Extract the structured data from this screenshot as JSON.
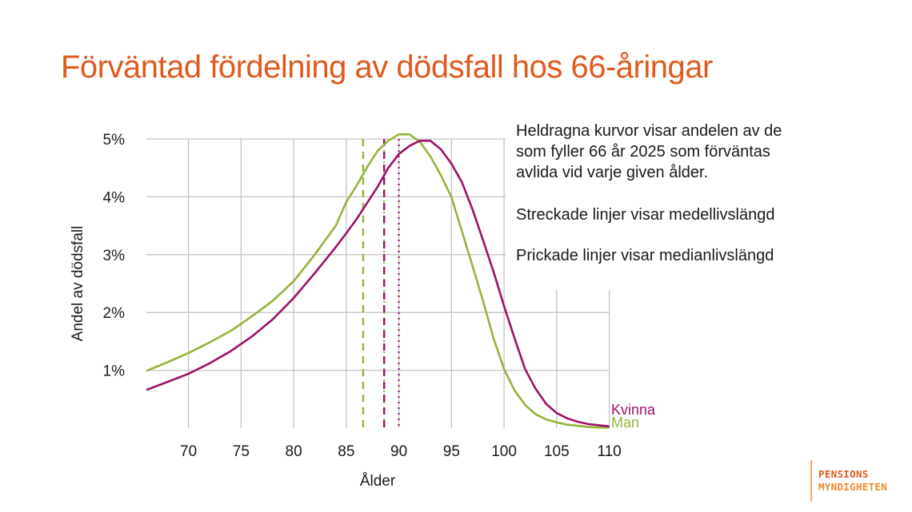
{
  "title": "Förväntad fördelning av dödsfall hos 66-åringar",
  "notes": {
    "solid": "Heldragna kurvor visar andelen av de som fyller 66 år 2025 som förväntas avlida vid varje given ålder.",
    "dashed": "Streckade linjer visar medellivslängd",
    "dotted": "Prickade linjer visar medianlivslängd"
  },
  "logo": {
    "line1": "PENSIONS",
    "line2": "MYNDIGHETEN"
  },
  "colors": {
    "title": "#e05a1e",
    "kvinna": "#9c1068",
    "man": "#94b53a",
    "grid": "#c8c2c4",
    "text": "#1a1a1a"
  },
  "chart_data": {
    "type": "line",
    "title": "Förväntad fördelning av dödsfall hos 66-åringar",
    "xlabel": "Ålder",
    "ylabel": "Andel av dödsfall",
    "xlim": [
      66,
      110
    ],
    "ylim": [
      0,
      5.0
    ],
    "xticks": [
      70,
      75,
      80,
      85,
      90,
      95,
      100,
      105,
      110
    ],
    "yticks": [
      1,
      2,
      3,
      4,
      5
    ],
    "ytick_labels": [
      "1%",
      "2%",
      "3%",
      "4%",
      "5%"
    ],
    "grid": true,
    "legend": "inline labels at line ends",
    "x": [
      66,
      68,
      70,
      72,
      74,
      76,
      78,
      80,
      82,
      84,
      85,
      86,
      87,
      88,
      89,
      90,
      91,
      92,
      93,
      94,
      95,
      96,
      97,
      98,
      99,
      100,
      101,
      102,
      103,
      104,
      105,
      106,
      107,
      108,
      109,
      110
    ],
    "series": [
      {
        "name": "Kvinna",
        "color": "#9c1068",
        "values": [
          0.66,
          0.8,
          0.94,
          1.12,
          1.33,
          1.58,
          1.88,
          2.25,
          2.68,
          3.13,
          3.37,
          3.62,
          3.9,
          4.18,
          4.5,
          4.74,
          4.88,
          4.97,
          4.97,
          4.82,
          4.57,
          4.25,
          3.78,
          3.25,
          2.7,
          2.11,
          1.55,
          1.02,
          0.68,
          0.42,
          0.26,
          0.17,
          0.11,
          0.07,
          0.05,
          0.03
        ]
      },
      {
        "name": "Man",
        "color": "#94b53a",
        "values": [
          0.99,
          1.14,
          1.3,
          1.48,
          1.68,
          1.93,
          2.2,
          2.54,
          3.0,
          3.5,
          3.91,
          4.2,
          4.52,
          4.8,
          4.97,
          5.08,
          5.08,
          4.95,
          4.7,
          4.37,
          3.99,
          3.4,
          2.8,
          2.2,
          1.55,
          1.02,
          0.65,
          0.4,
          0.24,
          0.15,
          0.1,
          0.06,
          0.04,
          0.02,
          0.01,
          0.01
        ]
      }
    ],
    "vertical_lines": [
      {
        "series": "Man",
        "kind": "medellivslängd",
        "style": "dashed",
        "x": 86.6
      },
      {
        "series": "Man",
        "kind": "medianlivslängd",
        "style": "dotted",
        "x": 88.6
      },
      {
        "series": "Kvinna",
        "kind": "medellivslängd",
        "style": "dashed",
        "x": 88.6
      },
      {
        "series": "Kvinna",
        "kind": "medianlivslängd",
        "style": "dotted",
        "x": 90.0
      }
    ],
    "annotations": [
      "Kvinna",
      "Man"
    ]
  }
}
